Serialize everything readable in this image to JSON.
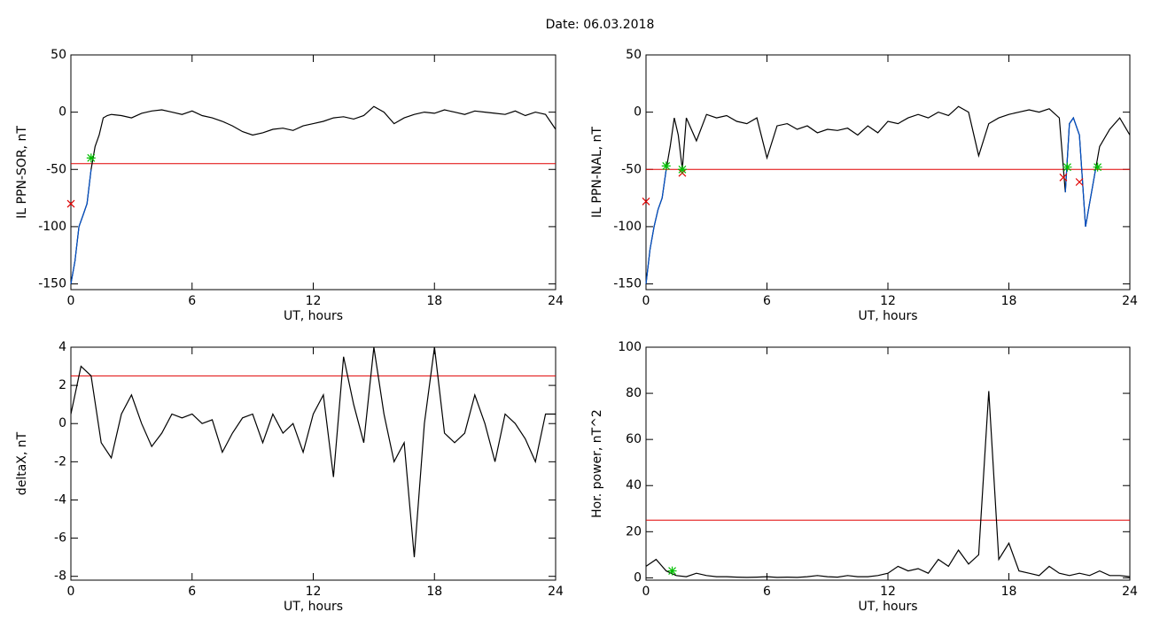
{
  "title": "Date:  06.03.2018",
  "chart_data": [
    {
      "type": "line",
      "xlabel": "UT, hours",
      "ylabel": "IL PPN-SOR, nT",
      "xlim": [
        0,
        24
      ],
      "xticks": [
        0,
        6,
        12,
        18,
        24
      ],
      "ylim": [
        -155,
        50
      ],
      "yticks": [
        -150,
        -100,
        -50,
        0,
        50
      ],
      "threshold": -45,
      "threshold_color": "#e00000",
      "series": [
        {
          "color": "#000000",
          "x": [
            0,
            0.2,
            0.4,
            0.6,
            0.8,
            1.0,
            1.2,
            1.4,
            1.6,
            1.8,
            2.0,
            2.5,
            3,
            3.5,
            4,
            4.5,
            5,
            5.5,
            6,
            6.5,
            7,
            7.5,
            8,
            8.5,
            9,
            9.5,
            10,
            10.5,
            11,
            11.5,
            12,
            12.5,
            13,
            13.5,
            14,
            14.5,
            15,
            15.5,
            16,
            16.5,
            17,
            17.5,
            18,
            18.5,
            19,
            19.5,
            20,
            20.5,
            21,
            21.5,
            22,
            22.5,
            23,
            23.5,
            24
          ],
          "values": [
            -150,
            -130,
            -100,
            -90,
            -80,
            -50,
            -30,
            -20,
            -5,
            -3,
            -2,
            -3,
            -5,
            -1,
            1,
            2,
            0,
            -2,
            1,
            -3,
            -5,
            -8,
            -12,
            -17,
            -20,
            -18,
            -15,
            -14,
            -16,
            -12,
            -10,
            -8,
            -5,
            -4,
            -6,
            -3,
            5,
            0,
            -10,
            -5,
            -2,
            0,
            -1,
            2,
            0,
            -2,
            1,
            0,
            -1,
            -2,
            1,
            -3,
            0,
            -2,
            -15
          ]
        },
        {
          "color": "#0050c8",
          "x": [
            0,
            0.2,
            0.4,
            0.6,
            0.8,
            1.0
          ],
          "values": [
            -150,
            -130,
            -100,
            -90,
            -80,
            -50
          ]
        }
      ],
      "markers": [
        {
          "marker": "cross",
          "color": "#e00000",
          "x": [
            0
          ],
          "values": [
            -80
          ]
        },
        {
          "marker": "star",
          "color": "#00c000",
          "x": [
            1.0
          ],
          "values": [
            -40
          ]
        }
      ]
    },
    {
      "type": "line",
      "xlabel": "UT, hours",
      "ylabel": "IL PPN-NAL, nT",
      "xlim": [
        0,
        24
      ],
      "xticks": [
        0,
        6,
        12,
        18,
        24
      ],
      "ylim": [
        -155,
        50
      ],
      "yticks": [
        -150,
        -100,
        -50,
        0,
        50
      ],
      "threshold": -50,
      "threshold_color": "#e00000",
      "series": [
        {
          "color": "#000000",
          "x": [
            0,
            0.2,
            0.4,
            0.6,
            0.8,
            1.0,
            1.2,
            1.4,
            1.6,
            1.8,
            2.0,
            2.5,
            3,
            3.5,
            4,
            4.5,
            5,
            5.5,
            6,
            6.5,
            7,
            7.5,
            8,
            8.5,
            9,
            9.5,
            10,
            10.5,
            11,
            11.5,
            12,
            12.5,
            13,
            13.5,
            14,
            14.5,
            15,
            15.5,
            16,
            16.5,
            17,
            17.5,
            18,
            18.5,
            19,
            19.5,
            20,
            20.5,
            20.8,
            21.0,
            21.2,
            21.5,
            21.8,
            22.0,
            22.3,
            22.5,
            23,
            23.5,
            24
          ],
          "values": [
            -150,
            -120,
            -100,
            -85,
            -75,
            -50,
            -30,
            -5,
            -20,
            -50,
            -5,
            -25,
            -2,
            -5,
            -3,
            -8,
            -10,
            -5,
            -40,
            -12,
            -10,
            -15,
            -12,
            -18,
            -15,
            -16,
            -14,
            -20,
            -12,
            -18,
            -8,
            -10,
            -5,
            -2,
            -5,
            0,
            -3,
            5,
            0,
            -38,
            -10,
            -5,
            -2,
            0,
            2,
            0,
            3,
            -5,
            -70,
            -10,
            -5,
            -20,
            -100,
            -80,
            -50,
            -30,
            -15,
            -5,
            -20
          ]
        },
        {
          "color": "#0050c8",
          "x": [
            0,
            0.2,
            0.4,
            0.6,
            0.8,
            1.0
          ],
          "values": [
            -150,
            -120,
            -100,
            -85,
            -75,
            -50
          ]
        },
        {
          "color": "#0050c8",
          "x": [
            20.8,
            21.0,
            21.2,
            21.5,
            21.8,
            22.0,
            22.3
          ],
          "values": [
            -70,
            -10,
            -5,
            -20,
            -100,
            -80,
            -50
          ]
        }
      ],
      "markers": [
        {
          "marker": "cross",
          "color": "#e00000",
          "x": [
            0,
            1.8,
            20.7,
            21.5
          ],
          "values": [
            -78,
            -53,
            -57,
            -61
          ]
        },
        {
          "marker": "star",
          "color": "#00c000",
          "x": [
            1.0,
            1.8,
            20.9,
            22.4
          ],
          "values": [
            -47,
            -50,
            -48,
            -48
          ]
        }
      ]
    },
    {
      "type": "line",
      "xlabel": "UT, hours",
      "ylabel": "deltaX, nT",
      "xlim": [
        0,
        24
      ],
      "xticks": [
        0,
        6,
        12,
        18,
        24
      ],
      "ylim": [
        -8.2,
        4
      ],
      "yticks": [
        -8,
        -6,
        -4,
        -2,
        0,
        2,
        4
      ],
      "threshold": 2.5,
      "threshold_color": "#e00000",
      "series": [
        {
          "color": "#000000",
          "x": [
            0,
            0.5,
            1,
            1.5,
            2,
            2.5,
            3,
            3.5,
            4,
            4.5,
            5,
            5.5,
            6,
            6.5,
            7,
            7.5,
            8,
            8.5,
            9,
            9.5,
            10,
            10.5,
            11,
            11.5,
            12,
            12.5,
            13,
            13.5,
            14,
            14.5,
            15,
            15.5,
            16,
            16.5,
            17,
            17.5,
            18,
            18.5,
            19,
            19.5,
            20,
            20.5,
            21,
            21.5,
            22,
            22.5,
            23,
            23.5,
            24
          ],
          "values": [
            0.5,
            3,
            2.5,
            -1,
            -1.8,
            0.5,
            1.5,
            0,
            -1.2,
            -0.5,
            0.5,
            0.3,
            0.5,
            0,
            0.2,
            -1.5,
            -0.5,
            0.3,
            0.5,
            -1,
            0.5,
            -0.5,
            0,
            -1.5,
            0.5,
            1.5,
            -2.8,
            3.5,
            1,
            -1,
            4,
            0.5,
            -2,
            -1,
            -7,
            0,
            4,
            -0.5,
            -1,
            -0.5,
            1.5,
            0,
            -2,
            0.5,
            0,
            -0.8,
            -2,
            0.5,
            0.5
          ]
        }
      ],
      "markers": []
    },
    {
      "type": "line",
      "xlabel": "UT, hours",
      "ylabel": "Hor. power, nT^2",
      "xlim": [
        0,
        24
      ],
      "xticks": [
        0,
        6,
        12,
        18,
        24
      ],
      "ylim": [
        -1,
        100
      ],
      "yticks": [
        0,
        20,
        40,
        60,
        80,
        100
      ],
      "threshold": 25,
      "threshold_color": "#e00000",
      "series": [
        {
          "color": "#000000",
          "x": [
            0,
            0.5,
            1,
            1.5,
            2,
            2.5,
            3,
            3.5,
            4,
            4.5,
            5,
            5.5,
            6,
            6.5,
            7,
            7.5,
            8,
            8.5,
            9,
            9.5,
            10,
            10.5,
            11,
            11.5,
            12,
            12.5,
            13,
            13.5,
            14,
            14.5,
            15,
            15.5,
            16,
            16.5,
            17,
            17.5,
            18,
            18.5,
            19,
            19.5,
            20,
            20.5,
            21,
            21.5,
            22,
            22.5,
            23,
            23.5,
            24
          ],
          "values": [
            5,
            8,
            3,
            1,
            0.5,
            2,
            1,
            0.5,
            0.5,
            0.3,
            0.2,
            0.3,
            0.5,
            0.2,
            0.3,
            0.2,
            0.5,
            1,
            0.5,
            0.3,
            1,
            0.5,
            0.5,
            1,
            2,
            5,
            3,
            4,
            2,
            8,
            5,
            12,
            6,
            10,
            81,
            8,
            15,
            3,
            2,
            1,
            5,
            2,
            1,
            2,
            1,
            3,
            1,
            1,
            0.5
          ]
        }
      ],
      "markers": [
        {
          "marker": "star",
          "color": "#00c000",
          "x": [
            1.3
          ],
          "values": [
            3
          ]
        }
      ]
    }
  ]
}
